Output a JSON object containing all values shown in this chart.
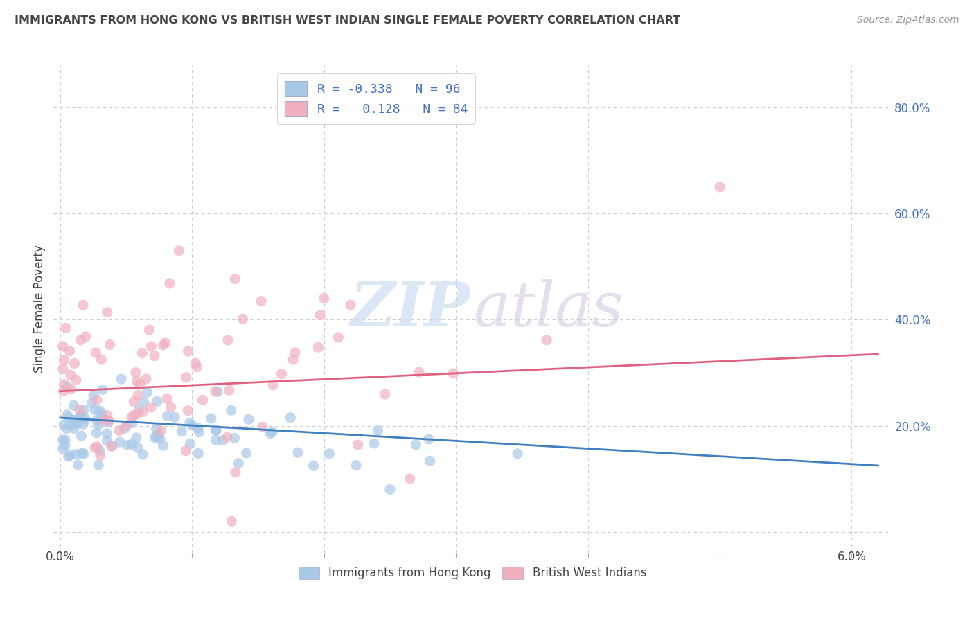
{
  "title": "IMMIGRANTS FROM HONG KONG VS BRITISH WEST INDIAN SINGLE FEMALE POVERTY CORRELATION CHART",
  "source": "Source: ZipAtlas.com",
  "ylabel": "Single Female Poverty",
  "hk_color": "#a8c8e8",
  "bwi_color": "#f0b0c0",
  "hk_line_color": "#4080c0",
  "bwi_line_color": "#e06080",
  "hk_R": -0.338,
  "hk_N": 96,
  "bwi_R": 0.128,
  "bwi_N": 84,
  "background_color": "#ffffff",
  "grid_color": "#cccccc",
  "tick_color": "#4472c4",
  "text_color": "#444444",
  "xlim_min": -0.0005,
  "xlim_max": 0.063,
  "ylim_min": -0.04,
  "ylim_max": 0.88,
  "legend1_label1": "R = -0.338   N = 96",
  "legend1_label2": "R =   0.128   N = 84",
  "legend2_label1": "Immigrants from Hong Kong",
  "legend2_label2": "British West Indians",
  "watermark_zip": "ZIP",
  "watermark_atlas": "atlas"
}
